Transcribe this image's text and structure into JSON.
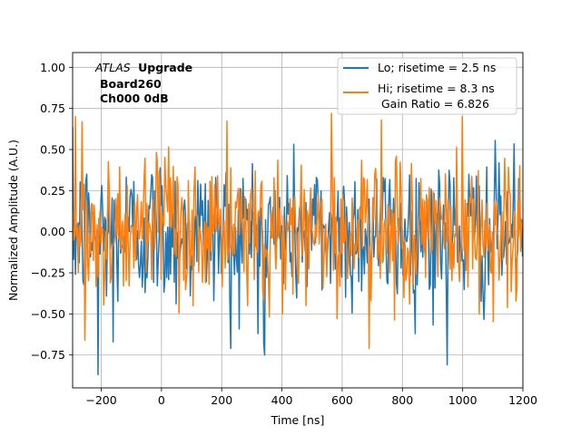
{
  "chart_data": {
    "type": "line",
    "title": "",
    "xlabel": "Time [ns]",
    "ylabel": "Normalized Amplitude (A.U.)",
    "xlim": [
      -295,
      1200
    ],
    "ylim": [
      -0.95,
      1.09
    ],
    "grid": true,
    "legend_position": "top-right",
    "xticks": [
      -200,
      0,
      200,
      400,
      600,
      800,
      1000,
      1200
    ],
    "xtick_labels": [
      "−200",
      "0",
      "200",
      "400",
      "600",
      "800",
      "1000",
      "1200"
    ],
    "yticks": [
      -0.75,
      -0.5,
      -0.25,
      0.0,
      0.25,
      0.5,
      0.75,
      1.0
    ],
    "ytick_labels": [
      "−0.75",
      "−0.50",
      "−0.25",
      "0.00",
      "0.25",
      "0.50",
      "0.75",
      "1.00"
    ],
    "annotation": {
      "experiment_italic": "ATLAS",
      "experiment_bold": "Upgrade",
      "board": "Board260",
      "channel": "Ch000 0dB"
    },
    "series": [
      {
        "name": "Lo; risetime = 2.5 ns",
        "color": "#1f77b4",
        "sample_spacing_ns": 3.125,
        "noise_sigma": 0.23,
        "notable_points": [
          {
            "x": -208,
            "y": -0.87
          },
          {
            "x": -160,
            "y": -0.67
          },
          {
            "x": 232,
            "y": -0.71
          },
          {
            "x": 340,
            "y": -0.68
          },
          {
            "x": 345,
            "y": -0.75
          },
          {
            "x": 950,
            "y": -0.81
          }
        ]
      },
      {
        "name": "Hi; risetime = 8.3 ns",
        "color": "#ff7f0e",
        "sample_spacing_ns": 3.125,
        "noise_sigma": 0.22,
        "notable_points": [
          {
            "x": -285,
            "y": 0.7
          },
          {
            "x": -262,
            "y": 0.67
          },
          {
            "x": -252,
            "y": -0.66
          },
          {
            "x": 565,
            "y": 0.72
          },
          {
            "x": 1000,
            "y": 0.7
          },
          {
            "x": 690,
            "y": -0.71
          }
        ]
      }
    ],
    "legend_extra": "Gain Ratio = 6.826"
  }
}
